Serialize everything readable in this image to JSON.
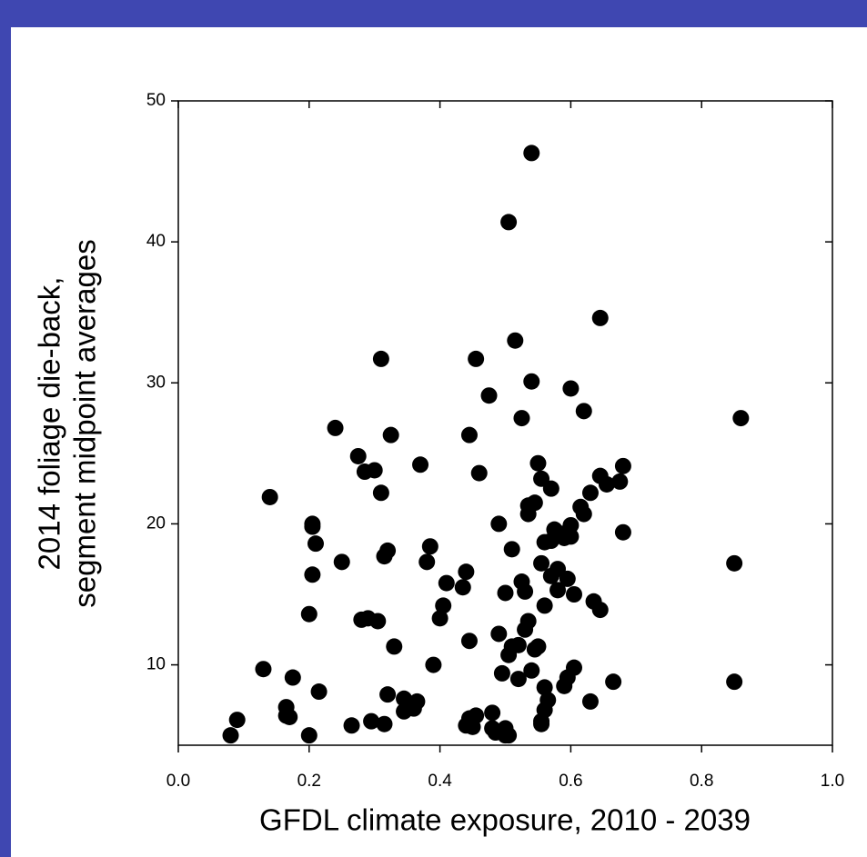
{
  "chart_data": {
    "type": "scatter",
    "xlabel": "GFDL climate exposure, 2010 - 2039",
    "ylabel": [
      "2014 foliage die-back,",
      "segment midpoint averages"
    ],
    "xlim": [
      0,
      1
    ],
    "ylim": [
      4.3,
      50
    ],
    "xticks": [
      {
        "value": 0,
        "label": "0.0"
      },
      {
        "value": 0.2,
        "label": "0.2"
      },
      {
        "value": 0.4,
        "label": "0.4"
      },
      {
        "value": 0.6,
        "label": "0.6"
      },
      {
        "value": 0.8,
        "label": "0.8"
      },
      {
        "value": 1,
        "label": "1.0"
      }
    ],
    "yticks": [
      10,
      20,
      30,
      40,
      50
    ],
    "color": "#000000",
    "x": [
      0.08,
      0.09,
      0.13,
      0.14,
      0.165,
      0.165,
      0.17,
      0.175,
      0.2,
      0.2,
      0.205,
      0.205,
      0.205,
      0.21,
      0.215,
      0.24,
      0.25,
      0.265,
      0.275,
      0.28,
      0.285,
      0.29,
      0.295,
      0.3,
      0.305,
      0.31,
      0.31,
      0.315,
      0.315,
      0.32,
      0.32,
      0.325,
      0.33,
      0.345,
      0.345,
      0.36,
      0.365,
      0.37,
      0.38,
      0.385,
      0.39,
      0.4,
      0.405,
      0.41,
      0.435,
      0.44,
      0.44,
      0.445,
      0.445,
      0.445,
      0.45,
      0.455,
      0.455,
      0.46,
      0.475,
      0.48,
      0.48,
      0.485,
      0.49,
      0.49,
      0.495,
      0.5,
      0.5,
      0.5,
      0.505,
      0.505,
      0.505,
      0.51,
      0.51,
      0.515,
      0.52,
      0.52,
      0.525,
      0.525,
      0.53,
      0.53,
      0.535,
      0.535,
      0.535,
      0.54,
      0.54,
      0.54,
      0.545,
      0.545,
      0.55,
      0.55,
      0.555,
      0.555,
      0.555,
      0.555,
      0.56,
      0.56,
      0.56,
      0.56,
      0.565,
      0.57,
      0.57,
      0.57,
      0.575,
      0.58,
      0.58,
      0.585,
      0.59,
      0.59,
      0.595,
      0.595,
      0.6,
      0.6,
      0.6,
      0.605,
      0.605,
      0.615,
      0.62,
      0.62,
      0.63,
      0.63,
      0.635,
      0.645,
      0.645,
      0.645,
      0.655,
      0.665,
      0.675,
      0.68,
      0.68,
      0.85,
      0.85,
      0.86
    ],
    "y": [
      5.0,
      6.1,
      9.7,
      21.9,
      7.0,
      6.4,
      6.3,
      9.1,
      5.0,
      13.6,
      19.8,
      20.0,
      16.4,
      18.6,
      8.1,
      26.8,
      17.3,
      5.7,
      24.8,
      13.2,
      23.7,
      13.3,
      6.0,
      23.8,
      13.1,
      31.7,
      22.2,
      17.7,
      5.8,
      18.1,
      7.9,
      26.3,
      11.3,
      7.6,
      6.7,
      6.9,
      7.4,
      24.2,
      17.3,
      18.4,
      10.0,
      13.3,
      14.2,
      15.8,
      15.5,
      16.6,
      5.7,
      11.7,
      26.3,
      6.2,
      5.6,
      31.7,
      6.4,
      23.6,
      29.1,
      6.6,
      5.5,
      5.2,
      12.2,
      20.0,
      9.4,
      15.1,
      5.5,
      5.0,
      5.0,
      41.4,
      10.7,
      18.2,
      11.3,
      33.0,
      9.0,
      11.4,
      27.5,
      15.9,
      15.2,
      12.5,
      21.3,
      13.1,
      20.7,
      46.3,
      30.1,
      9.6,
      11.1,
      21.5,
      24.3,
      11.3,
      5.8,
      17.2,
      23.2,
      6.0,
      14.2,
      18.7,
      8.4,
      6.8,
      7.5,
      22.5,
      16.3,
      18.8,
      19.6,
      15.3,
      16.8,
      19.3,
      8.5,
      19.0,
      16.1,
      9.1,
      29.6,
      19.9,
      19.1,
      9.8,
      15.0,
      21.2,
      28.0,
      20.7,
      7.4,
      22.2,
      14.5,
      23.4,
      34.6,
      13.9,
      22.8,
      8.8,
      23.0,
      24.1,
      19.4,
      17.2,
      8.8,
      27.5
    ]
  }
}
